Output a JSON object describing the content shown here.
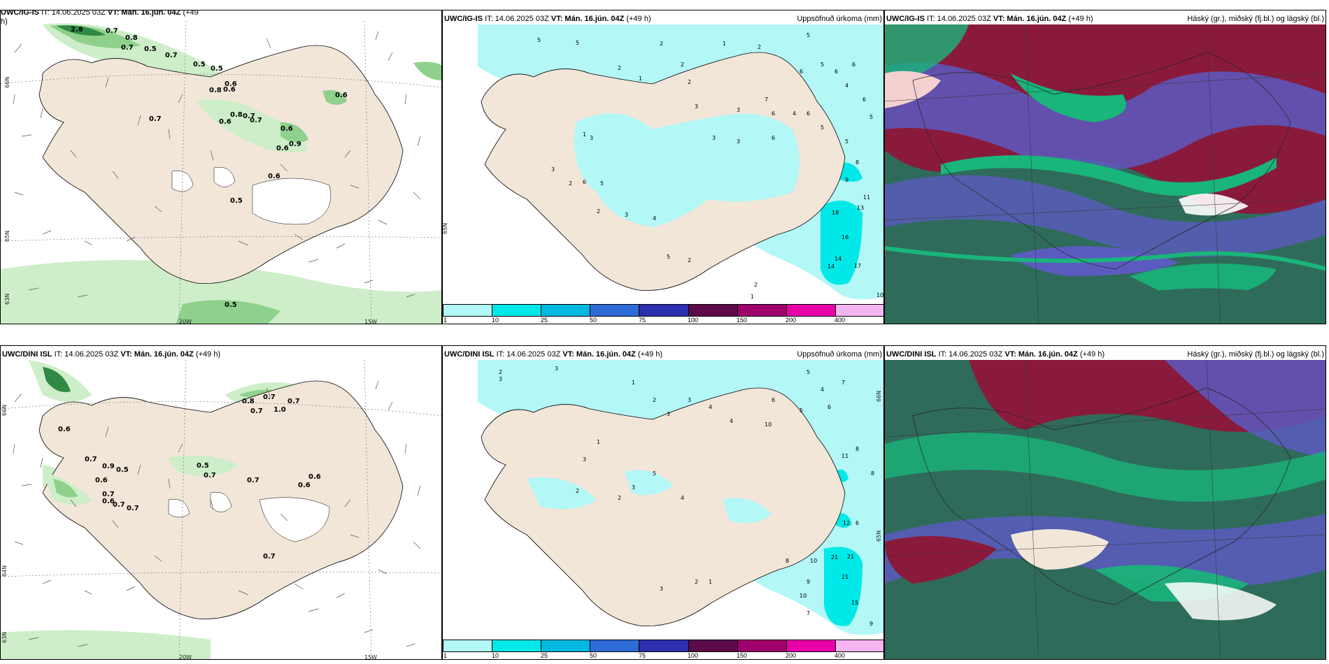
{
  "rows": [
    {
      "wind_panel": {
        "header_model": "UWC/IG-IS",
        "header_it": "IT: 14.06.2025 03Z",
        "header_vt_label": "VT:",
        "header_vt": "Mán. 16.jún. 04Z",
        "header_lead": "(+49",
        "header_lead2": "h)",
        "labels": [
          "2.6",
          "0.7",
          "0.8",
          "0.5",
          "0.7",
          "0.7",
          "0.5",
          "0.5",
          "0.8",
          "0.6",
          "0.6",
          "0.6",
          "0.8",
          "0.7",
          "0.7",
          "0.6",
          "0.7",
          "0.6",
          "0.9",
          "0.6",
          "0.6",
          "0.5",
          "0.5"
        ],
        "lat_labels": [
          "66N",
          "65N",
          "63N"
        ],
        "lon_labels": [
          "20W",
          "15W"
        ]
      },
      "precip_panel": {
        "header_model": "UWC/IG-IS",
        "header_it": "IT: 14.06.2025 03Z",
        "header_vt_label": "VT:",
        "header_vt": "Mán. 16.jún. 04Z",
        "header_lead": "(+49 h)",
        "header_right": "Uppsöfnuð úrkoma (mm)",
        "numbers": [
          "5",
          "5",
          "2",
          "2",
          "1",
          "2",
          "2",
          "1",
          "2",
          "6",
          "5",
          "5",
          "6",
          "6",
          "4",
          "6",
          "5",
          "7",
          "3",
          "6",
          "4",
          "6",
          "5",
          "3",
          "3",
          "3",
          "6",
          "5",
          "8",
          "9",
          "11",
          "13",
          "18",
          "16",
          "14",
          "17",
          "14",
          "10",
          "2",
          "1",
          "2",
          "5",
          "4",
          "3",
          "2",
          "1",
          "3",
          "2",
          "3",
          "5",
          "6"
        ],
        "lat_label": "65N"
      },
      "cloud_panel": {
        "header_model": "UWC/IG-IS",
        "header_it": "IT: 14.06.2025 03Z",
        "header_vt_label": "VT:",
        "header_vt": "Mán. 16.jún. 04Z",
        "header_lead": "(+49 h)",
        "header_right": "Háský (gr.), miðský (fj.bl.) og lágský (bl.)"
      }
    },
    {
      "wind_panel": {
        "header_model": "UWC/DINI ISL",
        "header_it": "IT: 14.06.2025 03Z",
        "header_vt_label": "VT:",
        "header_vt": "Mán. 16.jún. 04Z",
        "header_lead": "(+49 h)",
        "header_lead2": "",
        "labels": [
          "0.8",
          "0.7",
          "0.7",
          "1.0",
          "0.7",
          "0.6",
          "0.7",
          "0.9",
          "0.5",
          "0.6",
          "0.7",
          "0.6",
          "0.7",
          "0.7",
          "0.5",
          "0.7",
          "0.7",
          "0.6",
          "0.6",
          "0.7"
        ],
        "lat_labels": [
          "66N",
          "64N",
          "63N"
        ],
        "lon_labels": [
          "20W",
          "15W"
        ]
      },
      "precip_panel": {
        "header_model": "UWC/DINI ISL",
        "header_it": "IT: 14.06.2025 03Z",
        "header_vt_label": "VT:",
        "header_vt": "Mán. 16.jún. 04Z",
        "header_lead": "(+49 h)",
        "header_right": "Uppsöfnuð úrkoma (mm)",
        "numbers": [
          "3",
          "2",
          "3",
          "1",
          "2",
          "3",
          "3",
          "4",
          "4",
          "6",
          "5",
          "4",
          "7",
          "10",
          "5",
          "6",
          "8",
          "8",
          "11",
          "12",
          "6",
          "21",
          "21",
          "21",
          "10",
          "9",
          "10",
          "15",
          "7",
          "9",
          "8",
          "2",
          "1",
          "3",
          "2",
          "3",
          "5",
          "4",
          "3",
          "1",
          "2"
        ],
        "lat_labels": [
          "66N",
          "65N"
        ]
      },
      "cloud_panel": {
        "header_model": "UWC/DINI ISL",
        "header_it": "IT: 14.06.2025 03Z",
        "header_vt_label": "VT:",
        "header_vt": "Mán. 16.jún. 04Z",
        "header_lead": "(+49 h)",
        "header_right": "Háský (gr.), miðský (fj.bl.) og lágský (bl.)"
      }
    }
  ],
  "colorbar": {
    "colors": [
      "#b3f7f7",
      "#00e8e8",
      "#00b8e0",
      "#2f6bd6",
      "#2b2fb0",
      "#5c0a4a",
      "#a0006c",
      "#e800a8",
      "#f5b5f0"
    ],
    "ticks": [
      "1",
      "10",
      "25",
      "50",
      "75",
      "100",
      "150",
      "200",
      "400"
    ]
  },
  "colors": {
    "land": "#f2e6d9",
    "wind_green_light": "#cdeec8",
    "wind_green_mid": "#8fd18c",
    "wind_green_dark": "#2f8a45",
    "precip_light": "#b3f7f7",
    "precip_mid": "#00e8e8",
    "cloud_high": "#8a1a3c",
    "cloud_mid": "#5b5bbf",
    "cloud_low": "#2f6b5a",
    "cloud_green": "#19b57a"
  }
}
